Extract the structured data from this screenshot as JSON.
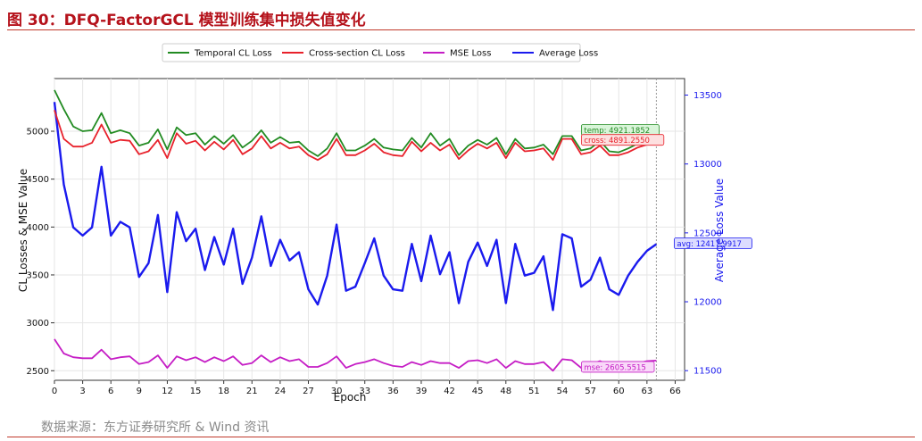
{
  "figure_title": "图 30：DFQ-FactorGCL 模型训练集中损失值变化",
  "source_note": "数据来源：东方证券研究所 & Wind 资讯",
  "chart_data": {
    "type": "line",
    "xlabel": "Epoch",
    "ylabel_left": "CL Losses & MSE Value",
    "ylabel_right": "Average Loss Value",
    "xlim": [
      0,
      67
    ],
    "ylim_left": [
      2400,
      5550
    ],
    "ylim_right": [
      11430,
      13620
    ],
    "x_ticks": [
      "0",
      "3",
      "6",
      "9",
      "12",
      "15",
      "18",
      "21",
      "24",
      "27",
      "30",
      "33",
      "36",
      "39",
      "42",
      "45",
      "48",
      "51",
      "54",
      "57",
      "60",
      "63",
      "66"
    ],
    "y_ticks_left": [
      "2500",
      "3000",
      "3500",
      "4000",
      "4500",
      "5000"
    ],
    "y_ticks_right": [
      "11500",
      "12000",
      "12500",
      "13000",
      "13500"
    ],
    "legend_position": "top-center",
    "grid": true,
    "vline_x": 64,
    "x": [
      0,
      1,
      2,
      3,
      4,
      5,
      6,
      7,
      8,
      9,
      10,
      11,
      12,
      13,
      14,
      15,
      16,
      17,
      18,
      19,
      20,
      21,
      22,
      23,
      24,
      25,
      26,
      27,
      28,
      29,
      30,
      31,
      32,
      33,
      34,
      35,
      36,
      37,
      38,
      39,
      40,
      41,
      42,
      43,
      44,
      45,
      46,
      47,
      48,
      49,
      50,
      51,
      52,
      53,
      54,
      55,
      56,
      57,
      58,
      59,
      60,
      61,
      62,
      63,
      64
    ],
    "series": [
      {
        "name": "Temporal CL Loss",
        "axis": "left",
        "color": "#228b22",
        "values": [
          5430,
          5230,
          5050,
          5000,
          5010,
          5190,
          4980,
          5010,
          4980,
          4850,
          4880,
          5020,
          4810,
          5040,
          4960,
          4980,
          4860,
          4950,
          4870,
          4960,
          4830,
          4900,
          5010,
          4880,
          4940,
          4880,
          4890,
          4800,
          4740,
          4820,
          4980,
          4800,
          4800,
          4850,
          4920,
          4830,
          4810,
          4800,
          4930,
          4830,
          4980,
          4850,
          4920,
          4750,
          4850,
          4910,
          4860,
          4930,
          4760,
          4920,
          4820,
          4830,
          4860,
          4760,
          4950,
          4950,
          4800,
          4820,
          4900,
          4790,
          4780,
          4820,
          4870,
          4890,
          4921.1852
        ],
        "end_label": "temp: 4921.1852"
      },
      {
        "name": "Cross-section CL Loss",
        "axis": "left",
        "color": "#e8212b",
        "values": [
          5220,
          4920,
          4840,
          4840,
          4880,
          5070,
          4880,
          4910,
          4900,
          4760,
          4790,
          4910,
          4720,
          4980,
          4870,
          4900,
          4800,
          4890,
          4810,
          4910,
          4760,
          4820,
          4950,
          4820,
          4880,
          4820,
          4840,
          4750,
          4700,
          4760,
          4920,
          4750,
          4750,
          4800,
          4870,
          4780,
          4750,
          4740,
          4890,
          4790,
          4880,
          4800,
          4860,
          4710,
          4800,
          4870,
          4820,
          4880,
          4720,
          4880,
          4790,
          4800,
          4820,
          4700,
          4920,
          4920,
          4760,
          4780,
          4850,
          4750,
          4750,
          4780,
          4830,
          4860,
          4891.255
        ],
        "end_label": "cross: 4891.2550"
      },
      {
        "name": "MSE Loss",
        "axis": "left",
        "color": "#c51dc5",
        "values": [
          2830,
          2680,
          2640,
          2630,
          2630,
          2720,
          2620,
          2640,
          2650,
          2570,
          2590,
          2660,
          2530,
          2650,
          2610,
          2640,
          2590,
          2640,
          2600,
          2650,
          2560,
          2580,
          2660,
          2590,
          2640,
          2600,
          2620,
          2540,
          2540,
          2580,
          2650,
          2530,
          2570,
          2590,
          2620,
          2580,
          2550,
          2540,
          2590,
          2560,
          2600,
          2580,
          2580,
          2530,
          2600,
          2610,
          2580,
          2620,
          2530,
          2600,
          2570,
          2570,
          2590,
          2500,
          2620,
          2610,
          2530,
          2570,
          2600,
          2560,
          2550,
          2570,
          2580,
          2600,
          2605.5515
        ],
        "end_label": "mse: 2605.5515"
      },
      {
        "name": "Average Loss",
        "axis": "right",
        "color": "#1a1aee",
        "values": [
          13450,
          12850,
          12540,
          12480,
          12540,
          12980,
          12480,
          12580,
          12540,
          12180,
          12280,
          12630,
          12070,
          12650,
          12440,
          12530,
          12230,
          12470,
          12270,
          12530,
          12130,
          12320,
          12620,
          12260,
          12450,
          12300,
          12360,
          12090,
          11980,
          12190,
          12560,
          12080,
          12110,
          12280,
          12460,
          12190,
          12090,
          12080,
          12420,
          12150,
          12480,
          12200,
          12360,
          11990,
          12290,
          12430,
          12260,
          12450,
          11990,
          12420,
          12190,
          12210,
          12330,
          11940,
          12490,
          12460,
          12110,
          12160,
          12320,
          12090,
          12050,
          12190,
          12290,
          12370,
          12417.9917
        ],
        "end_label": "avg: 12417.9917"
      }
    ]
  }
}
